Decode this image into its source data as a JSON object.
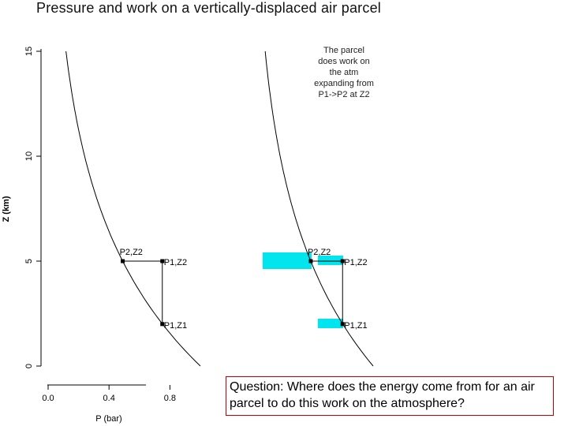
{
  "title": "Pressure and work on a vertically-displaced air parcel",
  "question": "Question:  Where does the energy come from for an air parcel to do this work on the atmosphere?",
  "colors": {
    "curve": "#000000",
    "highlight": "#00e5ee",
    "question_border": "#c00000"
  },
  "chart_data": {
    "type": "line",
    "title": "Pressure and work on a vertically-displaced air parcel",
    "xlabel": "P (bar)",
    "ylabel": "Z (km)",
    "x_ticks": [
      "0.0",
      "0.4",
      "0.8"
    ],
    "y_ticks": [
      "0",
      "5",
      "10",
      "15"
    ],
    "xlim": [
      0,
      1.05
    ],
    "ylim": [
      0,
      15.3
    ],
    "curve": {
      "x0": 1.0,
      "scale_height_km": 7.0,
      "z_range": [
        0,
        15
      ]
    },
    "points": [
      {
        "label": "P2,Z2",
        "x": 0.49,
        "y": 5
      },
      {
        "label": "P1,Z2",
        "x": 0.75,
        "y": 5
      },
      {
        "label": "P1,Z1",
        "x": 0.75,
        "y": 2
      }
    ],
    "annotation": "The parcel does work on the atm expanding from P1->P2 at Z2",
    "panels": 2
  }
}
